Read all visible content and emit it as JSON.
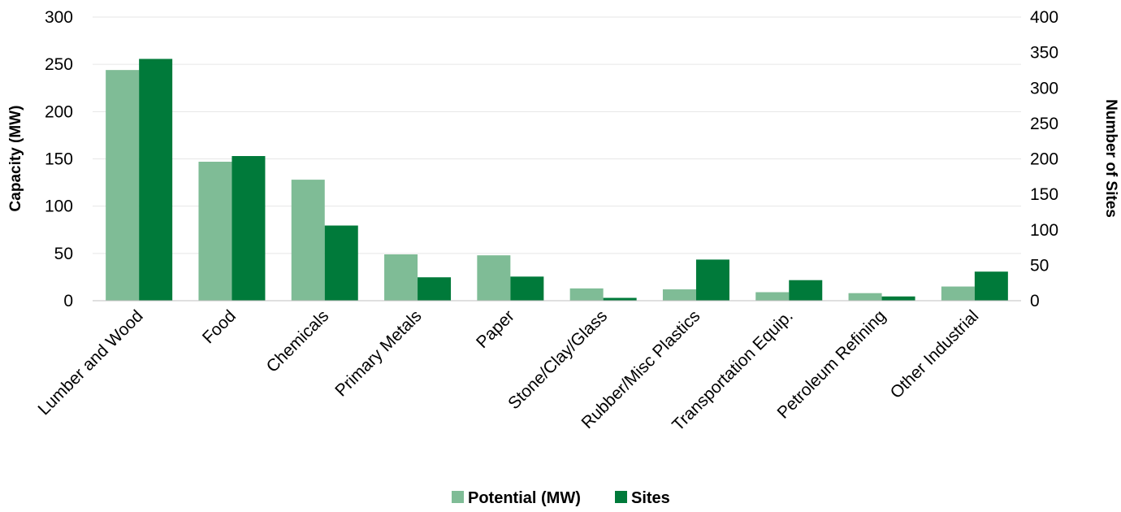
{
  "chart_data": {
    "type": "bar",
    "categories": [
      "Lumber and Wood",
      "Food",
      "Chemicals",
      "Primary Metals",
      "Paper",
      "Stone/Clay/Glass",
      "Rubber/Misc Plastics",
      "Transportation Equip.",
      "Petroleum Refining",
      "Other Industrial"
    ],
    "series": [
      {
        "name": "Potential (MW)",
        "axis": "left",
        "color": "#7fbc96",
        "values": [
          244,
          147,
          128,
          49,
          48,
          13,
          12,
          9,
          8,
          15
        ]
      },
      {
        "name": "Sites",
        "axis": "right",
        "color": "#007a3a",
        "values": [
          341,
          204,
          106,
          33,
          34,
          4,
          58,
          29,
          6,
          41
        ]
      }
    ],
    "ylabel": "Capacity (MW)",
    "y2label": "Number of Sites",
    "ylim": [
      0,
      300
    ],
    "y2lim": [
      0,
      400
    ],
    "yticks": [
      0,
      50,
      100,
      150,
      200,
      250,
      300
    ],
    "y2ticks": [
      0,
      50,
      100,
      150,
      200,
      250,
      300,
      350,
      400
    ],
    "grid": true,
    "gridColor": "#e6e6e6",
    "legend": "bottom-center"
  }
}
